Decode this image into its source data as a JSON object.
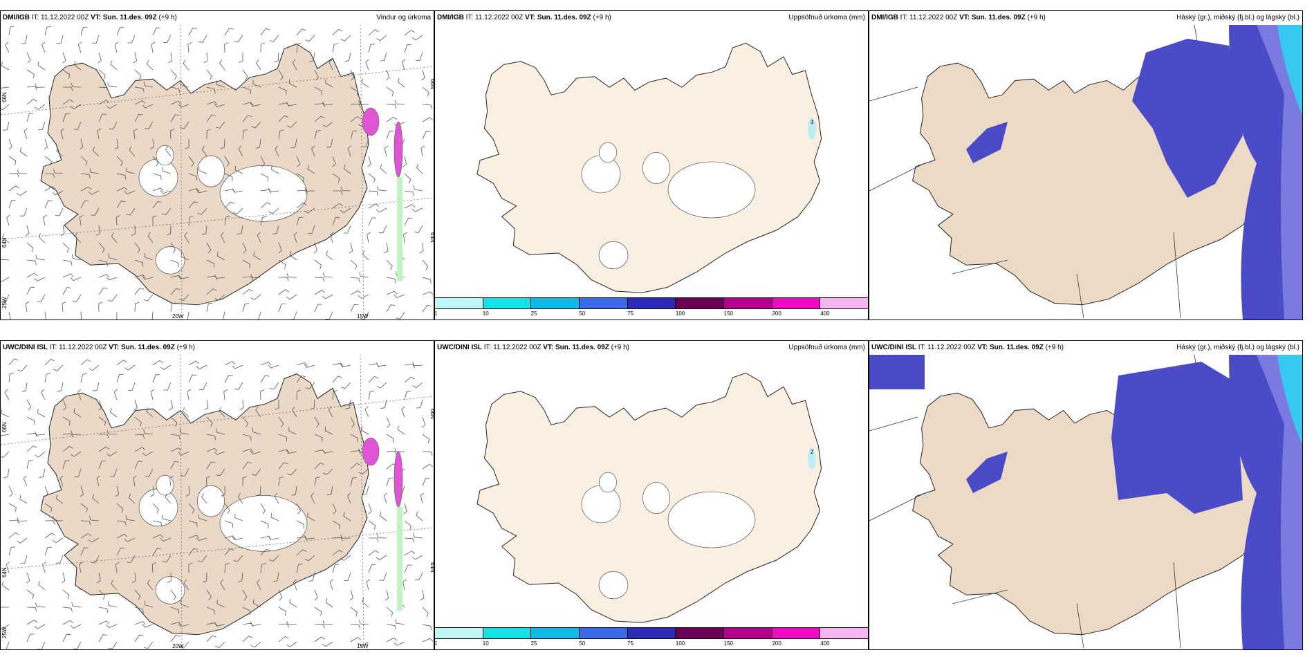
{
  "colors": {
    "land_wind": "#e9d9c6",
    "land_precip": "#fbefe2",
    "land_cloud": "#ecdac7",
    "high_cloud": "#4b4bc8",
    "mid_cloud": "#7a7ae0",
    "low_cloud": "#37c8f0",
    "precip_magenta": "#e055d5",
    "precip_green": "#bff5bf",
    "precip_cyan": "#bdeef2"
  },
  "rows": [
    {
      "model": "DMI/IGB",
      "it": "IT: 11.12.2022 00Z",
      "vt": "VT: Sun. 11.des. 09Z",
      "lead": "(+9 h)",
      "wind_title": "Vindur og úrkoma",
      "precip_title": "Uppsöfnuð úrkoma (mm)",
      "cloud_title": "Háský (gr.), miðský (fj.bl.) og lágský (bl.)",
      "precip_label": "3"
    },
    {
      "model": "UWC/DINI ISL",
      "it": "IT: 11.12.2022 00Z",
      "vt": "VT: Sun. 11.des. 09Z",
      "lead": "(+9 h)",
      "wind_title": "Vindur og úrkoma",
      "precip_title": "Uppsöfnuð úrkoma (mm)",
      "cloud_title": "Háský (gr.), miðský (fj.bl.) og lágský (bl.)",
      "precip_label": "2"
    }
  ],
  "axis_labels": {
    "lon_20w": "20W",
    "lon_15w": "15W",
    "lat_66n": "66N",
    "lat_64n": "64N",
    "lon_25w": "25W"
  },
  "colorbar": {
    "ticks": [
      "1",
      "10",
      "25",
      "50",
      "75",
      "100",
      "150",
      "200",
      "400"
    ],
    "colors": [
      "#bff6f6",
      "#13e2e9",
      "#0fb9e8",
      "#3c6be8",
      "#2d2ab8",
      "#6a0055",
      "#b3008e",
      "#f00bc2",
      "#f7b6f2"
    ]
  }
}
